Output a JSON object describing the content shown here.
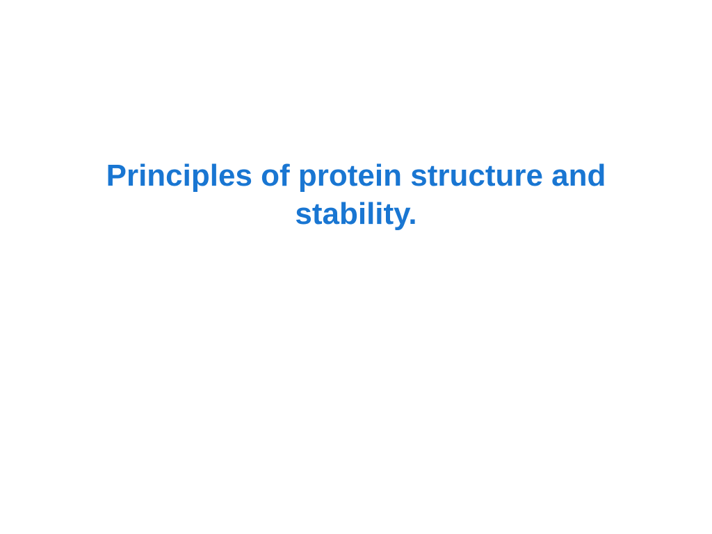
{
  "slide": {
    "title": "Principles of protein structure and stability.",
    "title_color": "#1976d2",
    "title_fontsize": 44,
    "title_fontweight": "bold",
    "background_color": "#ffffff"
  }
}
